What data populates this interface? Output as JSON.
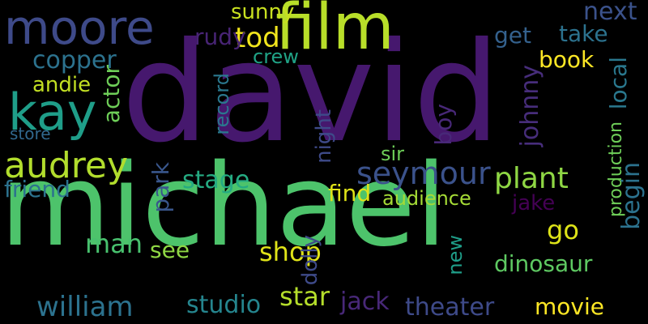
{
  "words": [
    {
      "text": "david",
      "color": "#46186e"
    },
    {
      "text": "michael",
      "color": "#4dc36b"
    },
    {
      "text": "film",
      "color": "#b8de29"
    },
    {
      "text": "moore",
      "color": "#3e4a89"
    },
    {
      "text": "kay",
      "color": "#1f9e89"
    },
    {
      "text": "audrey",
      "color": "#b2dd2d"
    },
    {
      "text": "seymour",
      "color": "#3b528b"
    },
    {
      "text": "tod",
      "color": "#f1e51d"
    },
    {
      "text": "copper",
      "color": "#2c728e"
    },
    {
      "text": "william",
      "color": "#2c728e"
    },
    {
      "text": "theater",
      "color": "#3e4a89"
    },
    {
      "text": "jack",
      "color": "#482878"
    },
    {
      "text": "star",
      "color": "#b5de2b"
    },
    {
      "text": "studio",
      "color": "#25858e"
    },
    {
      "text": "movie",
      "color": "#fde725"
    },
    {
      "text": "shop",
      "color": "#dfe318"
    },
    {
      "text": "stage",
      "color": "#25ab82"
    },
    {
      "text": "plant",
      "color": "#8fd744"
    },
    {
      "text": "friend",
      "color": "#2c728e"
    },
    {
      "text": "johnny",
      "color": "#472d7b"
    },
    {
      "text": "book",
      "color": "#fde725"
    },
    {
      "text": "next",
      "color": "#3b528b"
    },
    {
      "text": "take",
      "color": "#2c728e"
    },
    {
      "text": "get",
      "color": "#34618d"
    },
    {
      "text": "sunny",
      "color": "#c8e020"
    },
    {
      "text": "rudy",
      "color": "#482475"
    },
    {
      "text": "actor",
      "color": "#6ece58"
    },
    {
      "text": "man",
      "color": "#48c16e"
    },
    {
      "text": "see",
      "color": "#8fd744"
    },
    {
      "text": "park",
      "color": "#39568c"
    },
    {
      "text": "record",
      "color": "#2a788e"
    },
    {
      "text": "boy",
      "color": "#482878"
    },
    {
      "text": "dolly",
      "color": "#3e4a89"
    },
    {
      "text": "dinosaur",
      "color": "#5ec962"
    },
    {
      "text": "go",
      "color": "#dde318"
    },
    {
      "text": "jake",
      "color": "#440154"
    },
    {
      "text": "begin",
      "color": "#2c728e"
    },
    {
      "text": "local",
      "color": "#2a788e"
    },
    {
      "text": "find",
      "color": "#dfe318"
    },
    {
      "text": "andie",
      "color": "#c2df23"
    },
    {
      "text": "night",
      "color": "#3e4a89"
    },
    {
      "text": "sir",
      "color": "#6ece58"
    },
    {
      "text": "new",
      "color": "#1f9e89"
    },
    {
      "text": "audience",
      "color": "#a5db36"
    },
    {
      "text": "crew",
      "color": "#20a386"
    },
    {
      "text": "store",
      "color": "#31688e"
    },
    {
      "text": "production",
      "color": "#6ece58"
    }
  ]
}
